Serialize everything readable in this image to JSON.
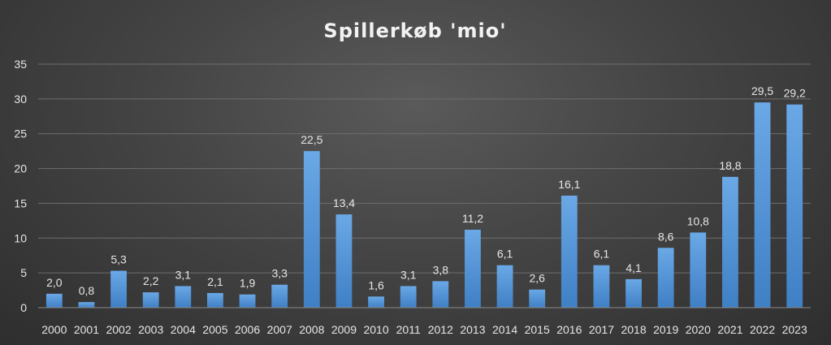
{
  "chart_data": {
    "type": "bar",
    "title": "Spillerkøb 'mio'",
    "categories": [
      "2000",
      "2001",
      "2002",
      "2003",
      "2004",
      "2005",
      "2006",
      "2007",
      "2008",
      "2009",
      "2010",
      "2011",
      "2012",
      "2013",
      "2014",
      "2015",
      "2016",
      "2017",
      "2018",
      "2019",
      "2020",
      "2021",
      "2022",
      "2023"
    ],
    "values": [
      2.0,
      0.8,
      5.3,
      2.2,
      3.1,
      2.1,
      1.9,
      3.3,
      22.5,
      13.4,
      1.6,
      3.1,
      3.8,
      11.2,
      6.1,
      2.6,
      16.1,
      6.1,
      4.1,
      8.6,
      10.8,
      18.8,
      29.5,
      29.2
    ],
    "data_labels": [
      "2,0",
      "0,8",
      "5,3",
      "2,2",
      "3,1",
      "2,1",
      "1,9",
      "3,3",
      "22,5",
      "13,4",
      "1,6",
      "3,1",
      "3,8",
      "11,2",
      "6,1",
      "2,6",
      "16,1",
      "6,1",
      "4,1",
      "8,6",
      "10,8",
      "18,8",
      "29,5",
      "29,2"
    ],
    "y_ticks": [
      "0",
      "5",
      "10",
      "15",
      "20",
      "25",
      "30",
      "35"
    ],
    "ylim": [
      0,
      35
    ],
    "xlabel": "",
    "ylabel": "",
    "grid": true,
    "legend": "none",
    "colors": {
      "bar_top": "#6aa8e6",
      "bar_bottom": "#3f7fc4"
    }
  }
}
